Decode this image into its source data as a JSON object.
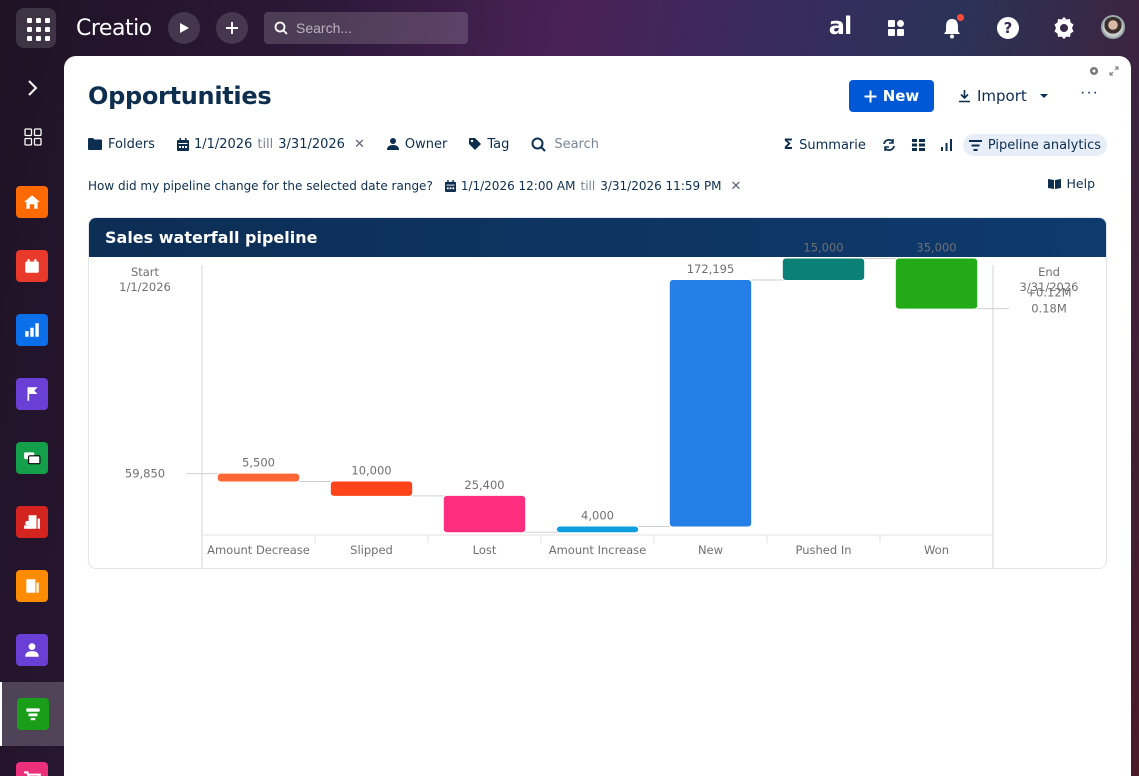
{
  "topbar": {
    "logo": "Creatio",
    "search_placeholder": "Search...",
    "icons": [
      "apps-grid-icon",
      "play-icon",
      "plus-icon",
      "search-icon",
      "ai-icon",
      "widgets-icon",
      "bell-icon",
      "help-icon",
      "gear-icon",
      "avatar"
    ]
  },
  "sidebar": {
    "items": [
      {
        "name": "home",
        "color": "#ff6a00"
      },
      {
        "name": "calendar",
        "color": "#e8392a"
      },
      {
        "name": "dashboards",
        "color": "#0a6fe8"
      },
      {
        "name": "flag",
        "color": "#6a3fd6"
      },
      {
        "name": "chat",
        "color": "#14a04a"
      },
      {
        "name": "accounts",
        "color": "#d3241f"
      },
      {
        "name": "buildings",
        "color": "#ff8c00"
      },
      {
        "name": "contacts",
        "color": "#6a3fd6"
      },
      {
        "name": "opportunities",
        "color": "#1a9e1a",
        "active": true
      },
      {
        "name": "orders",
        "color": "#ec2f7a"
      }
    ]
  },
  "page": {
    "title": "Opportunities",
    "new_label": "New",
    "import_label": "Import",
    "more_label": "···"
  },
  "filters": {
    "folders": "Folders",
    "date_from": "1/1/2026",
    "date_till_word": "till",
    "date_to": "3/31/2026",
    "owner": "Owner",
    "tag": "Tag",
    "search_placeholder": "Search"
  },
  "view_controls": {
    "summaries": "Summarie",
    "pipeline_analytics": "Pipeline analytics"
  },
  "question": {
    "text": "How did my pipeline change for the selected date range?",
    "from": "1/1/2026 12:00 AM",
    "till_word": "till",
    "to": "3/31/2026 11:59 PM",
    "help": "Help"
  },
  "chart_data": {
    "type": "waterfall",
    "title": "Sales waterfall pipeline",
    "start": {
      "label": "Start",
      "date": "1/1/2026",
      "value": 59850,
      "value_label": "59,850"
    },
    "end": {
      "label": "End",
      "date": "3/31/2026",
      "value": 175145,
      "change_label": "+0.12M",
      "value_label": "0.18M"
    },
    "categories": [
      "Amount Decrease",
      "Slipped",
      "Lost",
      "Amount Increase",
      "New",
      "Pushed In",
      "Won"
    ],
    "values": [
      -5500,
      -10000,
      -25400,
      4000,
      172195,
      15000,
      -35000
    ],
    "value_labels": [
      "5,500",
      "10,000",
      "25,400",
      "4,000",
      "172,195",
      "15,000",
      "35,000"
    ],
    "colors": [
      "#ff6633",
      "#ff4419",
      "#ff2e7e",
      "#0e9fe0",
      "#257fe6",
      "#0b8077",
      "#22aa17"
    ],
    "ylim": [
      17000,
      200000
    ],
    "grid": false,
    "legend": "none"
  }
}
